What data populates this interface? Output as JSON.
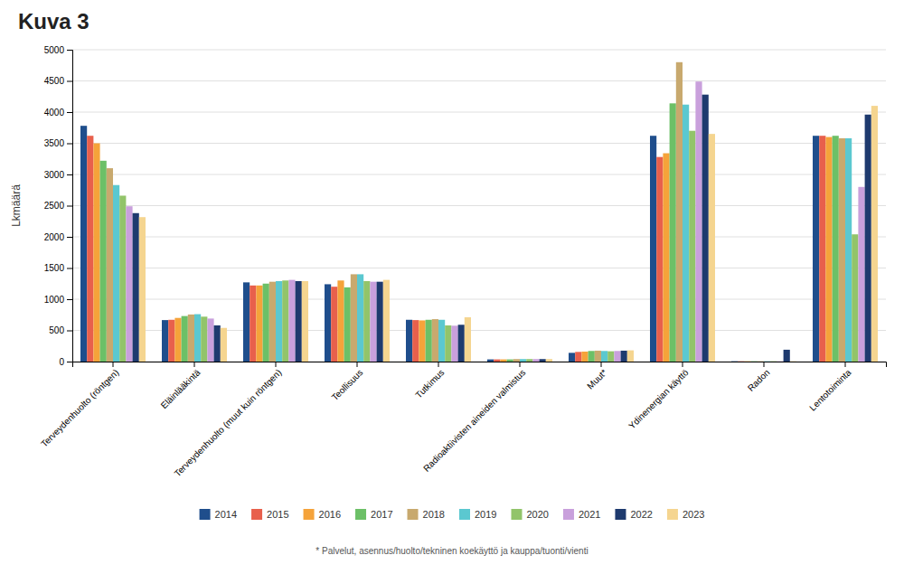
{
  "chart_data": {
    "type": "bar",
    "title": "Kuva 3",
    "y_label": "Lkmäärä",
    "categories": [
      "Terveydenhuolto (röntgen)",
      "Eläinlääkintä",
      "Terveydenhuolto (muut kuin röntgen)",
      "Teollisuus",
      "Tutkimus",
      "Radioaktiivisten aineiden valmistus",
      "Muut*",
      "Ydinenergian käyttö",
      "Radon",
      "Lentotoiminta"
    ],
    "series": [
      {
        "name": "2014",
        "color": "#1f4e8c",
        "values": [
          3780,
          665,
          1270,
          1240,
          670,
          35,
          140,
          3620,
          5,
          3620
        ]
      },
      {
        "name": "2015",
        "color": "#e8604c",
        "values": [
          3620,
          670,
          1220,
          1200,
          665,
          35,
          155,
          3280,
          5,
          3620
        ]
      },
      {
        "name": "2016",
        "color": "#f5a33a",
        "values": [
          3500,
          700,
          1220,
          1300,
          660,
          35,
          160,
          3340,
          5,
          3600
        ]
      },
      {
        "name": "2017",
        "color": "#6cc067",
        "values": [
          3220,
          730,
          1250,
          1190,
          670,
          35,
          170,
          4140,
          5,
          3620
        ]
      },
      {
        "name": "2018",
        "color": "#c8a96e",
        "values": [
          3100,
          755,
          1280,
          1400,
          680,
          40,
          175,
          4800,
          5,
          3580
        ]
      },
      {
        "name": "2019",
        "color": "#5bc8d0",
        "values": [
          2830,
          760,
          1290,
          1400,
          670,
          40,
          170,
          4120,
          5,
          3580
        ]
      },
      {
        "name": "2020",
        "color": "#92c46a",
        "values": [
          2660,
          720,
          1300,
          1290,
          580,
          40,
          165,
          3700,
          5,
          2040
        ]
      },
      {
        "name": "2021",
        "color": "#c9a0dc",
        "values": [
          2490,
          690,
          1310,
          1280,
          575,
          40,
          170,
          4490,
          5,
          2800
        ]
      },
      {
        "name": "2022",
        "color": "#1e3a6e",
        "values": [
          2380,
          580,
          1290,
          1280,
          590,
          40,
          175,
          4280,
          190,
          3960
        ]
      },
      {
        "name": "2023",
        "color": "#f5d590",
        "values": [
          2316,
          540,
          1290,
          1310,
          710,
          40,
          180,
          3650,
          5,
          4100
        ]
      }
    ],
    "ylim": [
      0,
      5000
    ],
    "yticks": [
      0,
      500,
      1000,
      1500,
      2000,
      2500,
      3000,
      3500,
      4000,
      4500,
      5000
    ],
    "grid": true,
    "legend": "bottom",
    "annotations": [
      "* Palvelut, asennus/huolto/tekninen koekäyttö ja kauppa/tuonti/vienti"
    ]
  }
}
